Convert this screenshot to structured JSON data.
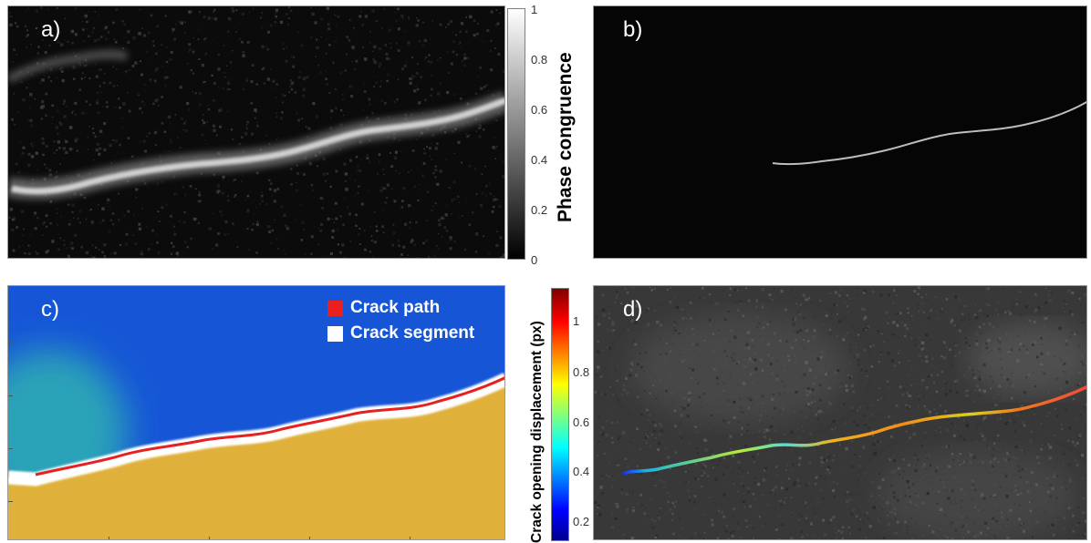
{
  "panels": {
    "a": {
      "label": "a)",
      "colorbar": {
        "title": "Phase congruence",
        "ticks": [
          "1",
          "0.8",
          "0.6",
          "0.4",
          "0.2",
          "0"
        ],
        "colormap": "gray",
        "range": [
          0,
          1
        ]
      }
    },
    "b": {
      "label": "b)"
    },
    "c": {
      "label": "c)",
      "legend": [
        {
          "label": "Crack path",
          "color": "#e8201f"
        },
        {
          "label": "Crack segment",
          "color": "#ffffff"
        }
      ],
      "colors": {
        "upper_region": "#1656d6",
        "upper_left_region": "#2aa3b8",
        "lower_region": "#e0b13a"
      }
    },
    "d": {
      "label": "d)",
      "colorbar": {
        "title": "Crack opening displacement (px)",
        "ticks": [
          "1",
          "0.8",
          "0.6",
          "0.4",
          "0.2"
        ],
        "colormap": "jet",
        "range": [
          0.1,
          1.15
        ]
      }
    }
  },
  "colors": {
    "figure_background": "#ffffff",
    "panel_b_background": "#050505",
    "crack_path": "#e8201f"
  }
}
